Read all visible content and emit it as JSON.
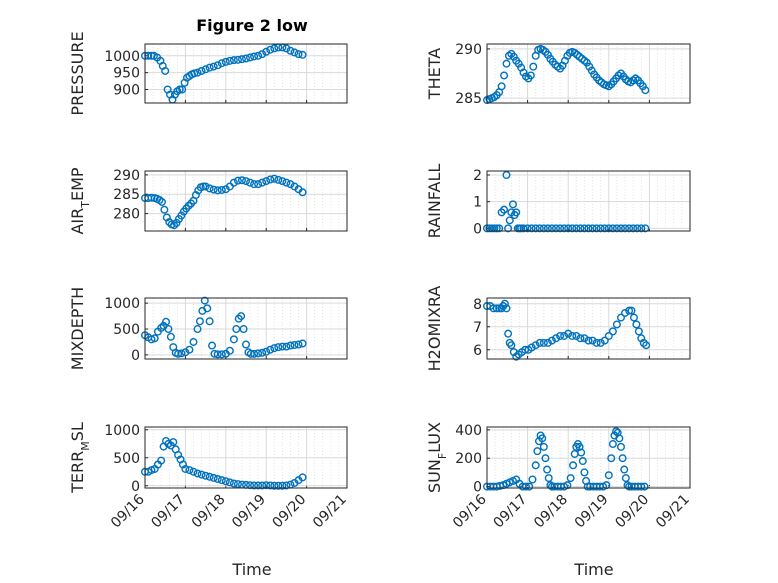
{
  "title": "Figure 2 low",
  "xlabel": "Time",
  "colors": {
    "marker": "#0072BD",
    "grid": "#d9d9d9",
    "axis": "#262626"
  },
  "x_ticks": [
    "09/16",
    "09/17",
    "09/18",
    "09/19",
    "09/20",
    "09/21"
  ],
  "chart_data": [
    {
      "type": "scatter",
      "title": "Figure 2 low",
      "ylabel": "PRESSURE",
      "ylim": [
        860,
        1035
      ],
      "yticks": [
        900,
        950,
        1000
      ],
      "xlim": [
        0,
        5
      ],
      "xlabel": "",
      "grid": true,
      "x": [
        0.0,
        0.08,
        0.16,
        0.22,
        0.3,
        0.38,
        0.44,
        0.5,
        0.56,
        0.62,
        0.68,
        0.74,
        0.8,
        0.86,
        0.92,
        0.98,
        1.04,
        1.1,
        1.16,
        1.22,
        1.3,
        1.4,
        1.5,
        1.6,
        1.7,
        1.8,
        1.9,
        2.0,
        2.1,
        2.2,
        2.3,
        2.4,
        2.5,
        2.6,
        2.7,
        2.8,
        2.9,
        3.0,
        3.1,
        3.2,
        3.3,
        3.4,
        3.5,
        3.6,
        3.7,
        3.8,
        3.9
      ],
      "y": [
        1000,
        1000,
        1000,
        1000,
        995,
        985,
        970,
        955,
        900,
        885,
        870,
        885,
        895,
        900,
        900,
        920,
        935,
        940,
        945,
        948,
        950,
        955,
        960,
        965,
        968,
        972,
        978,
        982,
        985,
        987,
        988,
        990,
        992,
        995,
        998,
        1000,
        1005,
        1012,
        1018,
        1022,
        1025,
        1025,
        1022,
        1015,
        1010,
        1005,
        1003
      ]
    },
    {
      "type": "scatter",
      "ylabel": "THETA",
      "ylim": [
        284.5,
        290.5
      ],
      "yticks": [
        285,
        290
      ],
      "xlim": [
        0,
        5
      ],
      "xlabel": "",
      "grid": true,
      "x": [
        0.0,
        0.06,
        0.12,
        0.18,
        0.24,
        0.3,
        0.36,
        0.42,
        0.48,
        0.54,
        0.6,
        0.66,
        0.72,
        0.78,
        0.84,
        0.9,
        0.96,
        1.02,
        1.08,
        1.14,
        1.2,
        1.26,
        1.32,
        1.38,
        1.44,
        1.5,
        1.56,
        1.62,
        1.68,
        1.74,
        1.8,
        1.86,
        1.92,
        1.98,
        2.04,
        2.1,
        2.16,
        2.22,
        2.28,
        2.34,
        2.4,
        2.46,
        2.52,
        2.58,
        2.64,
        2.7,
        2.76,
        2.82,
        2.88,
        2.94,
        3.0,
        3.06,
        3.12,
        3.18,
        3.24,
        3.3,
        3.36,
        3.42,
        3.48,
        3.54,
        3.6,
        3.66,
        3.72,
        3.78,
        3.84,
        3.9
      ],
      "y": [
        284.8,
        284.9,
        285.0,
        285.1,
        285.3,
        285.6,
        286.2,
        287.3,
        288.5,
        289.3,
        289.5,
        289.2,
        288.8,
        288.5,
        288.1,
        287.6,
        287.2,
        287.0,
        287.3,
        288.2,
        289.3,
        289.9,
        290.0,
        289.9,
        289.7,
        289.4,
        289.0,
        288.7,
        288.4,
        288.2,
        288.0,
        288.3,
        288.8,
        289.3,
        289.6,
        289.7,
        289.6,
        289.4,
        289.2,
        289.0,
        288.8,
        288.6,
        288.2,
        287.8,
        287.4,
        287.1,
        286.8,
        286.6,
        286.4,
        286.3,
        286.2,
        286.4,
        286.7,
        287.0,
        287.3,
        287.5,
        287.2,
        286.9,
        286.7,
        286.6,
        286.8,
        287.0,
        286.8,
        286.5,
        286.2,
        285.8
      ]
    },
    {
      "type": "scatter",
      "ylabel": "AIR_TEMP",
      "ylabel_main": "AIR",
      "ylabel_sub": "T",
      "ylabel_rest": "EMP",
      "ylim": [
        275.5,
        291
      ],
      "yticks": [
        280,
        285,
        290
      ],
      "xlim": [
        0,
        5
      ],
      "xlabel": "",
      "grid": true,
      "x": [
        0.0,
        0.08,
        0.16,
        0.24,
        0.3,
        0.36,
        0.42,
        0.48,
        0.54,
        0.6,
        0.66,
        0.72,
        0.78,
        0.84,
        0.9,
        0.96,
        1.02,
        1.08,
        1.14,
        1.2,
        1.26,
        1.32,
        1.38,
        1.44,
        1.5,
        1.6,
        1.7,
        1.8,
        1.9,
        2.0,
        2.1,
        2.2,
        2.3,
        2.4,
        2.5,
        2.6,
        2.7,
        2.8,
        2.9,
        3.0,
        3.1,
        3.2,
        3.3,
        3.4,
        3.5,
        3.6,
        3.7,
        3.8,
        3.9
      ],
      "y": [
        284.0,
        284.0,
        284.1,
        284.0,
        283.8,
        283.5,
        283.0,
        281.0,
        279.0,
        277.8,
        277.2,
        277.0,
        277.6,
        278.6,
        279.5,
        280.5,
        281.3,
        282.0,
        282.6,
        283.3,
        284.8,
        286.0,
        286.8,
        287.0,
        287.0,
        286.5,
        286.2,
        286.0,
        286.1,
        286.3,
        287.0,
        288.0,
        288.5,
        288.6,
        288.4,
        288.0,
        287.6,
        287.6,
        288.0,
        288.4,
        288.8,
        289.0,
        288.7,
        288.4,
        288.0,
        287.6,
        287.0,
        286.3,
        285.5
      ]
    },
    {
      "type": "scatter",
      "ylabel": "RAINFALL",
      "ylim": [
        -0.1,
        2.15
      ],
      "yticks": [
        0,
        1,
        2
      ],
      "xlim": [
        0,
        5
      ],
      "xlabel": "",
      "grid": true,
      "x": [
        0.0,
        0.06,
        0.12,
        0.18,
        0.24,
        0.3,
        0.36,
        0.42,
        0.48,
        0.52,
        0.56,
        0.6,
        0.64,
        0.68,
        0.72,
        0.76,
        0.8,
        0.84,
        0.9,
        1.0,
        1.1,
        1.2,
        1.3,
        1.4,
        1.5,
        1.6,
        1.7,
        1.8,
        1.9,
        2.0,
        2.1,
        2.2,
        2.3,
        2.4,
        2.5,
        2.6,
        2.7,
        2.8,
        2.9,
        3.0,
        3.1,
        3.2,
        3.3,
        3.4,
        3.5,
        3.6,
        3.7,
        3.8,
        3.9
      ],
      "y": [
        0,
        0,
        0,
        0,
        0,
        0,
        0.6,
        0.7,
        2.0,
        0,
        0.3,
        0.6,
        0.9,
        0.5,
        0.6,
        0,
        0,
        0,
        0,
        0,
        0,
        0,
        0,
        0,
        0,
        0,
        0,
        0,
        0,
        0,
        0,
        0,
        0,
        0,
        0,
        0,
        0,
        0,
        0,
        0,
        0,
        0,
        0,
        0,
        0,
        0,
        0,
        0,
        0
      ]
    },
    {
      "type": "scatter",
      "ylabel": "MIXDEPTH",
      "ylim": [
        -80,
        1100
      ],
      "yticks": [
        0,
        500,
        1000
      ],
      "xlim": [
        0,
        5
      ],
      "xlabel": "",
      "grid": true,
      "x": [
        0.0,
        0.08,
        0.16,
        0.24,
        0.32,
        0.4,
        0.46,
        0.52,
        0.58,
        0.64,
        0.7,
        0.76,
        0.82,
        0.9,
        1.0,
        1.1,
        1.2,
        1.3,
        1.36,
        1.42,
        1.48,
        1.54,
        1.6,
        1.66,
        1.72,
        1.8,
        1.9,
        2.0,
        2.1,
        2.2,
        2.26,
        2.32,
        2.38,
        2.44,
        2.5,
        2.56,
        2.62,
        2.7,
        2.8,
        2.9,
        3.0,
        3.1,
        3.2,
        3.3,
        3.4,
        3.5,
        3.6,
        3.7,
        3.8,
        3.9
      ],
      "y": [
        380,
        340,
        300,
        320,
        450,
        520,
        560,
        640,
        500,
        350,
        150,
        40,
        20,
        30,
        50,
        100,
        250,
        500,
        650,
        850,
        1050,
        900,
        650,
        180,
        20,
        10,
        10,
        20,
        80,
        300,
        500,
        700,
        750,
        500,
        200,
        50,
        20,
        20,
        30,
        40,
        60,
        100,
        130,
        150,
        160,
        160,
        180,
        190,
        200,
        220
      ]
    },
    {
      "type": "scatter",
      "ylabel": "H2OMIXRA",
      "ylim": [
        5.6,
        8.25
      ],
      "yticks": [
        6,
        7,
        8
      ],
      "xlim": [
        0,
        5
      ],
      "xlabel": "",
      "grid": true,
      "x": [
        0.0,
        0.08,
        0.16,
        0.24,
        0.3,
        0.36,
        0.4,
        0.44,
        0.48,
        0.52,
        0.56,
        0.6,
        0.66,
        0.72,
        0.78,
        0.86,
        0.94,
        1.02,
        1.1,
        1.2,
        1.3,
        1.4,
        1.5,
        1.6,
        1.7,
        1.8,
        1.9,
        2.0,
        2.1,
        2.2,
        2.3,
        2.4,
        2.5,
        2.6,
        2.7,
        2.8,
        2.9,
        3.0,
        3.1,
        3.2,
        3.3,
        3.4,
        3.5,
        3.56,
        3.62,
        3.68,
        3.74,
        3.8,
        3.86,
        3.92
      ],
      "y": [
        7.9,
        7.9,
        7.8,
        7.8,
        7.8,
        7.8,
        7.9,
        8.0,
        7.8,
        6.7,
        6.3,
        6.2,
        5.9,
        5.7,
        5.8,
        5.9,
        6.0,
        6.0,
        6.1,
        6.2,
        6.3,
        6.3,
        6.3,
        6.4,
        6.5,
        6.6,
        6.6,
        6.7,
        6.6,
        6.6,
        6.5,
        6.5,
        6.4,
        6.4,
        6.3,
        6.3,
        6.4,
        6.6,
        6.8,
        7.1,
        7.4,
        7.6,
        7.7,
        7.7,
        7.4,
        7.1,
        6.8,
        6.5,
        6.3,
        6.2
      ]
    },
    {
      "type": "scatter",
      "ylabel": "TERR_MSL",
      "ylabel_main": "TERR",
      "ylabel_sub": "M",
      "ylabel_rest": "SL",
      "ylim": [
        -40,
        1050
      ],
      "yticks": [
        0,
        500,
        1000
      ],
      "xlim": [
        0,
        5
      ],
      "xlabel": "Time",
      "grid": true,
      "x": [
        0.0,
        0.08,
        0.16,
        0.24,
        0.32,
        0.4,
        0.46,
        0.52,
        0.58,
        0.64,
        0.7,
        0.76,
        0.82,
        0.88,
        0.94,
        1.0,
        1.1,
        1.2,
        1.3,
        1.4,
        1.5,
        1.6,
        1.7,
        1.8,
        1.9,
        2.0,
        2.1,
        2.2,
        2.3,
        2.4,
        2.5,
        2.6,
        2.7,
        2.8,
        2.9,
        3.0,
        3.1,
        3.2,
        3.3,
        3.4,
        3.5,
        3.6,
        3.7,
        3.8,
        3.9
      ],
      "y": [
        250,
        250,
        280,
        300,
        380,
        450,
        700,
        800,
        750,
        720,
        780,
        650,
        550,
        470,
        380,
        300,
        280,
        250,
        220,
        200,
        180,
        160,
        140,
        120,
        100,
        80,
        60,
        40,
        30,
        20,
        15,
        10,
        5,
        5,
        5,
        10,
        5,
        0,
        0,
        0,
        5,
        20,
        50,
        100,
        150
      ]
    },
    {
      "type": "scatter",
      "ylabel": "SUN_FLUX",
      "ylabel_main": "SUN",
      "ylabel_sub": "F",
      "ylabel_rest": "LUX",
      "ylim": [
        -10,
        420
      ],
      "yticks": [
        0,
        200,
        400
      ],
      "xlim": [
        0,
        5
      ],
      "xlabel": "Time",
      "grid": true,
      "x": [
        0.0,
        0.08,
        0.16,
        0.24,
        0.32,
        0.4,
        0.48,
        0.56,
        0.64,
        0.72,
        0.8,
        0.88,
        0.96,
        1.04,
        1.12,
        1.2,
        1.24,
        1.28,
        1.32,
        1.36,
        1.4,
        1.44,
        1.48,
        1.52,
        1.56,
        1.6,
        1.66,
        1.74,
        1.82,
        1.9,
        1.98,
        2.06,
        2.12,
        2.16,
        2.2,
        2.24,
        2.28,
        2.32,
        2.36,
        2.4,
        2.44,
        2.48,
        2.54,
        2.62,
        2.7,
        2.78,
        2.86,
        2.94,
        3.0,
        3.06,
        3.1,
        3.14,
        3.18,
        3.22,
        3.26,
        3.3,
        3.34,
        3.38,
        3.42,
        3.46,
        3.5,
        3.56,
        3.64,
        3.72,
        3.8,
        3.88
      ],
      "y": [
        0,
        0,
        0,
        0,
        5,
        10,
        20,
        30,
        40,
        50,
        20,
        0,
        0,
        0,
        50,
        150,
        250,
        320,
        360,
        340,
        280,
        200,
        120,
        60,
        10,
        0,
        0,
        0,
        0,
        0,
        10,
        60,
        150,
        230,
        280,
        300,
        280,
        240,
        180,
        100,
        40,
        0,
        0,
        0,
        0,
        0,
        0,
        10,
        80,
        200,
        300,
        360,
        390,
        380,
        340,
        280,
        200,
        120,
        60,
        10,
        0,
        0,
        0,
        0,
        0,
        0
      ]
    }
  ]
}
